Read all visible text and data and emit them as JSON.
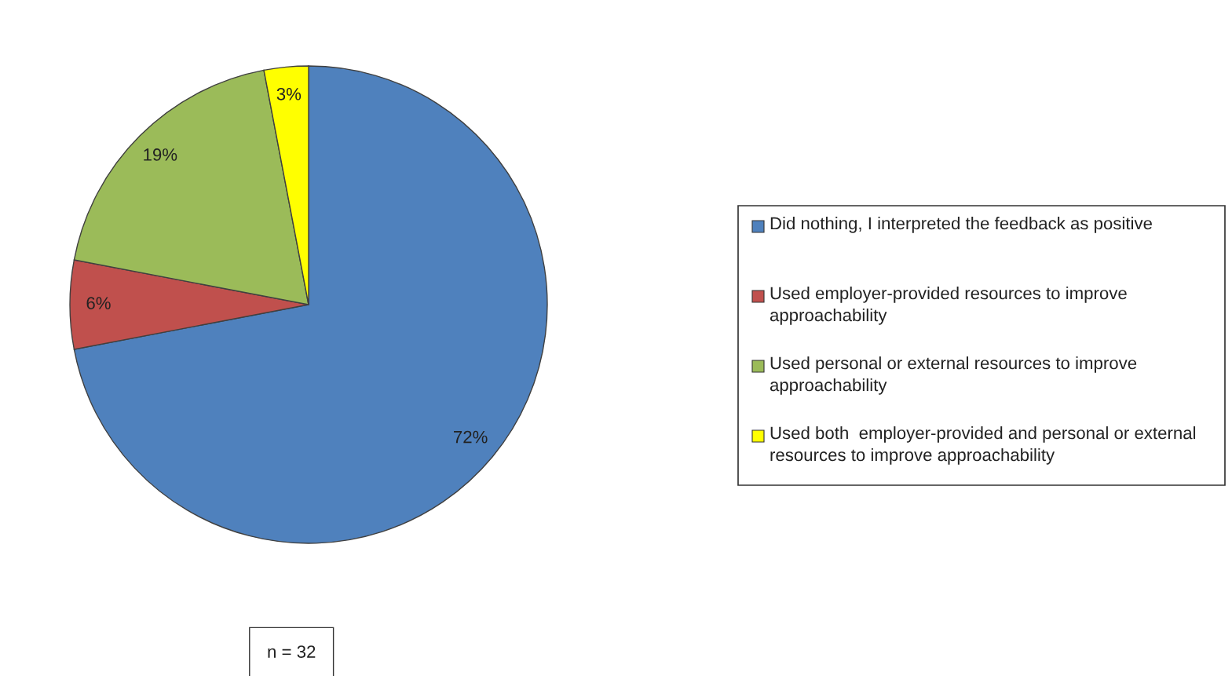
{
  "chart_data": {
    "type": "pie",
    "categories": [
      "Did nothing, I interpreted the feedback as positive",
      "Used employer-provided resources to improve approachability",
      "Used personal or external resources to improve approachability",
      "Used both  employer-provided and personal or external resources to improve approachability"
    ],
    "values": [
      72,
      6,
      19,
      3
    ],
    "value_labels": [
      "72%",
      "6%",
      "19%",
      "3%"
    ],
    "colors": [
      "#4f81bd",
      "#c0504d",
      "#9bbb59",
      "#ffff00"
    ],
    "legend": "right",
    "annotations": [
      "n = 32"
    ]
  }
}
